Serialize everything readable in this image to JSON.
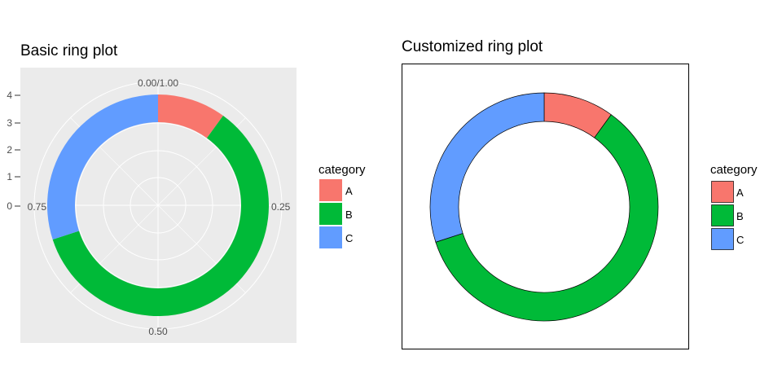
{
  "chart_data": [
    {
      "type": "pie",
      "title": "Basic ring plot",
      "categories": [
        "A",
        "B",
        "C"
      ],
      "values": [
        10,
        60,
        30
      ],
      "fractions": [
        0.1,
        0.6,
        0.3
      ],
      "colors": [
        "#F8766D",
        "#00BA38",
        "#619CFF"
      ],
      "theta_tick_labels": [
        "0.00/1.00",
        "0.25",
        "0.50",
        "0.75"
      ],
      "radial_tick_labels": [
        "0",
        "1",
        "2",
        "3",
        "4"
      ],
      "legend": {
        "title": "category",
        "labels": [
          "A",
          "B",
          "C"
        ],
        "position": "right"
      },
      "panel_background": "#EBEBEB",
      "grid": true
    },
    {
      "type": "pie",
      "title": "Customized ring plot",
      "categories": [
        "A",
        "B",
        "C"
      ],
      "values": [
        10,
        60,
        30
      ],
      "fractions": [
        0.1,
        0.6,
        0.3
      ],
      "colors": [
        "#F8766D",
        "#00BA38",
        "#619CFF"
      ],
      "slice_border": "#000000",
      "legend": {
        "title": "category",
        "labels": [
          "A",
          "B",
          "C"
        ],
        "position": "right"
      },
      "panel_background": "#FFFFFF",
      "panel_border": "#000000",
      "grid": false
    }
  ]
}
